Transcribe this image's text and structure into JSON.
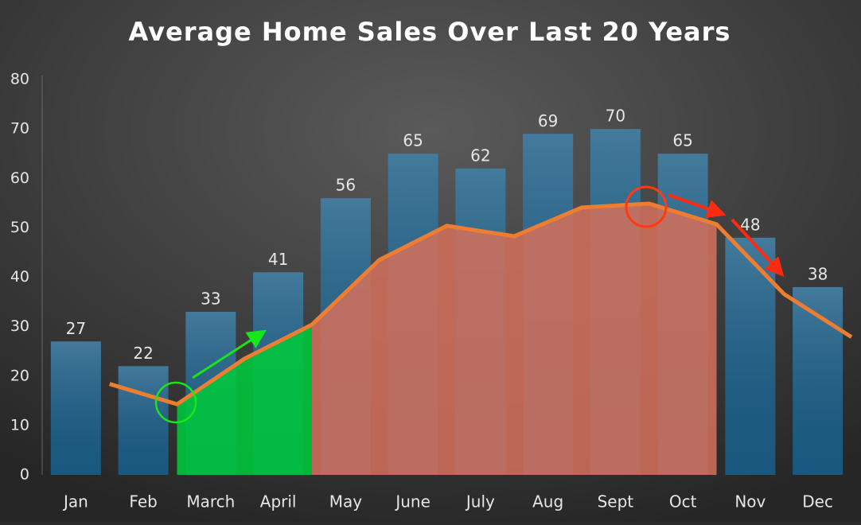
{
  "chart_data": {
    "type": "bar_line",
    "title": "Average Home Sales Over Last 20 Years",
    "categories": [
      "Jan",
      "Feb",
      "March",
      "April",
      "May",
      "June",
      "July",
      "Aug",
      "Sept",
      "Oct",
      "Nov",
      "Dec"
    ],
    "values": [
      27,
      22,
      33,
      41,
      56,
      65,
      62,
      69,
      70,
      65,
      48,
      38
    ],
    "color": "#1b5d86",
    "line": {
      "color": "#ed7d31",
      "values": [
        18.4,
        14.3,
        23.5,
        30.4,
        43.5,
        50.4,
        48.3,
        54.1,
        54.9,
        50.7,
        36.6,
        27.9
      ]
    },
    "area_fill": [
      {
        "from": 1,
        "to": 3,
        "color": "#00c83c"
      },
      {
        "from": 3,
        "to": 9,
        "color": "#d0705c"
      }
    ],
    "ylim": [
      0,
      80
    ],
    "yticks": [
      0,
      10,
      20,
      30,
      40,
      50,
      60,
      70,
      80
    ],
    "grid": false
  }
}
